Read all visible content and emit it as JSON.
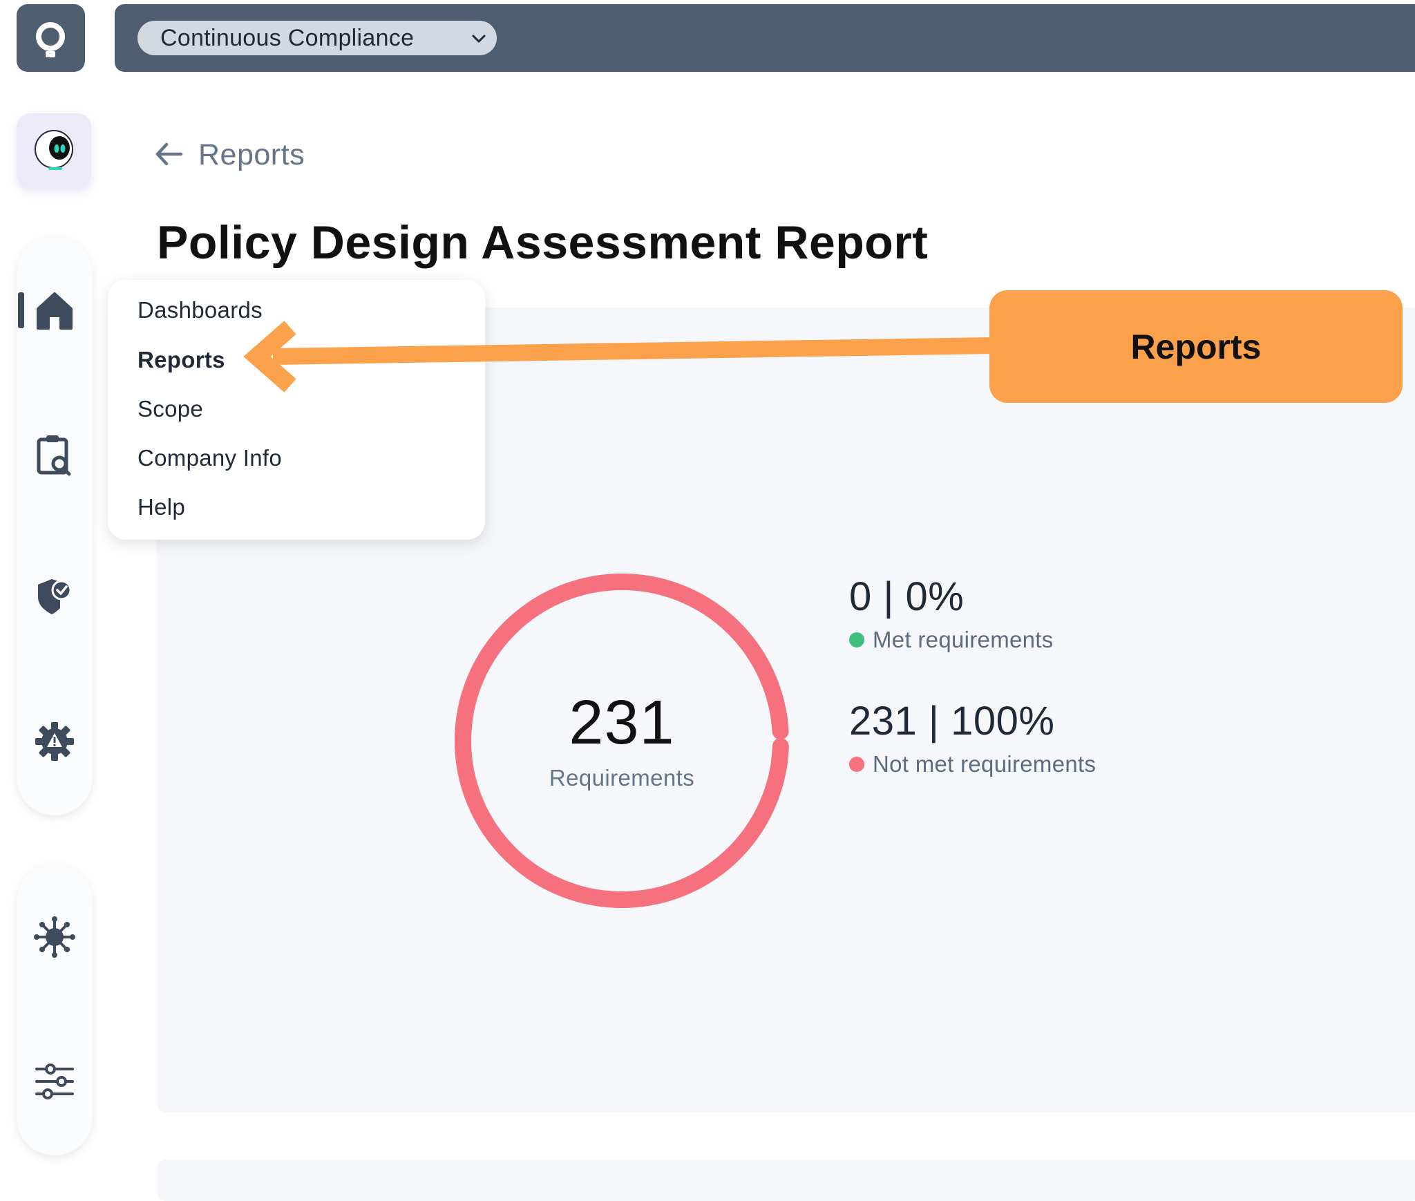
{
  "topbar": {
    "workspace_label": "Continuous Compliance",
    "icons": [
      "app-logo-icon",
      "chevron-down-icon"
    ]
  },
  "sidebar": {
    "icons": [
      "assistant-bot-icon",
      "home-icon",
      "clipboard-search-icon",
      "shield-check-icon",
      "gear-alert-icon",
      "network-hub-icon",
      "sliders-icon"
    ]
  },
  "breadcrumb": {
    "label": "Reports"
  },
  "page": {
    "title": "Policy Design Assessment Report"
  },
  "dropdown": {
    "items": [
      {
        "label": "Dashboards"
      },
      {
        "label": "Reports"
      },
      {
        "label": "Scope"
      },
      {
        "label": "Company Info"
      },
      {
        "label": "Help"
      }
    ]
  },
  "callout": {
    "label": "Reports"
  },
  "report": {
    "total": "231",
    "total_label": "Requirements",
    "met": {
      "value": "0 | 0%",
      "label": "Met requirements",
      "fraction": 0
    },
    "not_met": {
      "value": "231 | 100%",
      "label": "Not met requirements",
      "fraction": 1
    }
  },
  "colors": {
    "topbar": "#4e5d70",
    "accent_callout": "#fba04b",
    "met": "#3fbf7f",
    "not_met": "#f4717d",
    "card_bg": "#f5f7fa"
  }
}
